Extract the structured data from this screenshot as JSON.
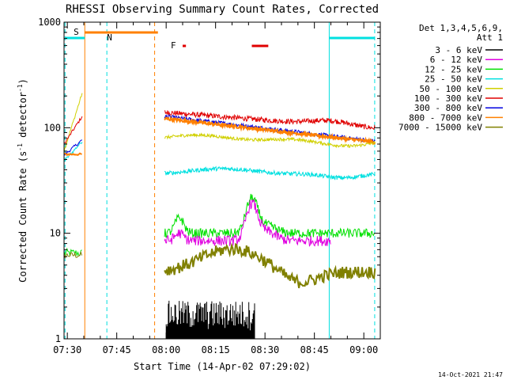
{
  "chart_data": {
    "type": "line",
    "title": "RHESSI Observing Summary Count Rates, Corrected",
    "xlabel": "Start Time (14-Apr-02 07:29:02)",
    "ylabel": "Corrected Count Rate (s⁻¹ detector⁻¹)",
    "ylabel_prefix": "Corrected Count Rate (s",
    "ylabel_sup1": "-1",
    "ylabel_mid": " detector",
    "ylabel_sup2": "-1",
    "ylabel_suffix": ")",
    "y_scale": "log",
    "ylim": [
      1,
      1000
    ],
    "xlim_minutes_after_0730": [
      -1,
      95
    ],
    "x_tick_labels": [
      "07:30",
      "07:45",
      "08:00",
      "08:15",
      "08:30",
      "08:45",
      "09:00"
    ],
    "x_tick_minutes": [
      0,
      15,
      30,
      45,
      60,
      75,
      90
    ],
    "y_tick_labels": [
      "1",
      "10",
      "100",
      "1000"
    ],
    "y_tick_values": [
      1,
      10,
      100,
      1000
    ],
    "legend_header": [
      "Det 1,3,4,5,6,9,",
      "Att 1"
    ],
    "legend_placement": "right",
    "timestamp": "14-Oct-2021 21:47",
    "annotations": {
      "saa_label": "S",
      "night_label": "N",
      "flare_label": "F",
      "saa_color": "#ff8000",
      "night_color": "#00e0e0",
      "flare_color": "#e00000"
    },
    "series": [
      {
        "name": "3 - 6 keV",
        "color": "#000000"
      },
      {
        "name": "6 - 12 keV",
        "color": "#e000e0"
      },
      {
        "name": "12 - 25 keV",
        "color": "#00e000"
      },
      {
        "name": "25 - 50 keV",
        "color": "#00e0e0"
      },
      {
        "name": "50 - 100 keV",
        "color": "#d0d000"
      },
      {
        "name": "100 - 300 keV",
        "color": "#e00000"
      },
      {
        "name": "300 - 800 keV",
        "color": "#0000e0"
      },
      {
        "name": "800 - 7000 keV",
        "color": "#ff8000"
      },
      {
        "name": "7000 - 15000 keV",
        "color": "#808000"
      }
    ]
  }
}
